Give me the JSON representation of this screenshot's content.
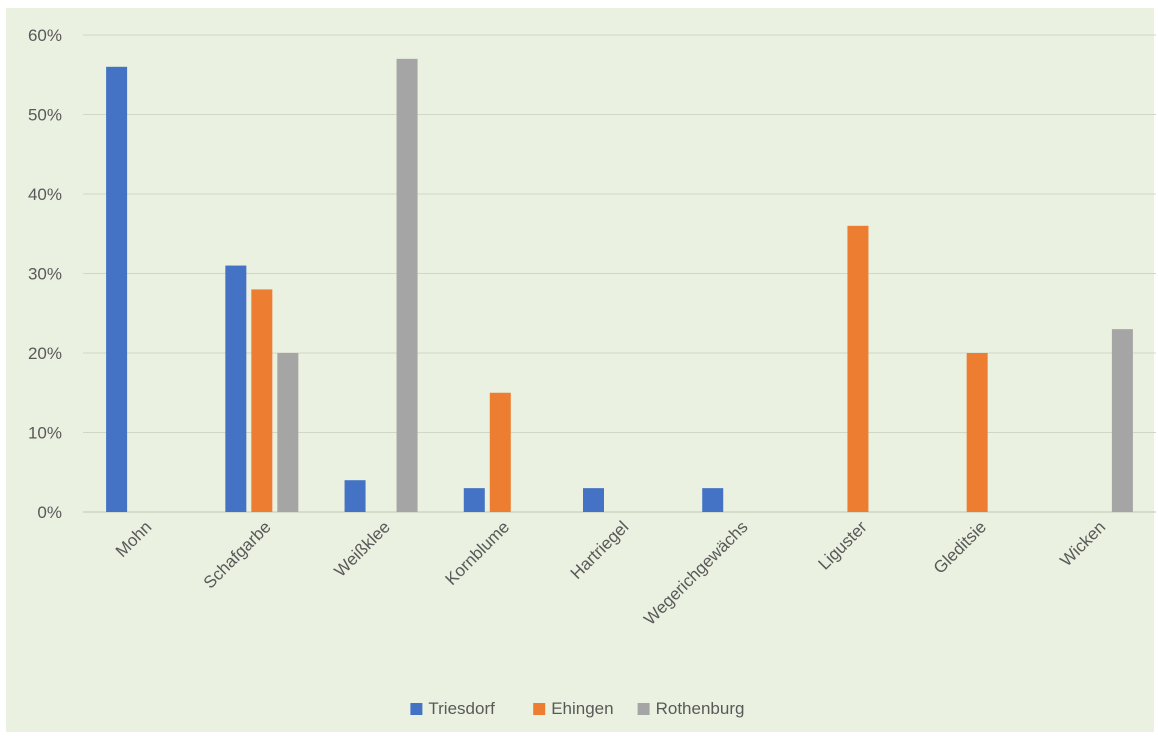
{
  "chart_data": {
    "type": "bar",
    "title": "",
    "xlabel": "",
    "ylabel": "",
    "categories": [
      "Mohn",
      "Schafgarbe",
      "Weißklee",
      "Kornblume",
      "Hartriegel",
      "Wegerichgewächs",
      "Liguster",
      "Gleditsie",
      "Wicken"
    ],
    "series": [
      {
        "name": "Triesdorf",
        "color": "#4472c4",
        "values": [
          56,
          31,
          4,
          3,
          3,
          3,
          0,
          0,
          0
        ]
      },
      {
        "name": "Ehingen",
        "color": "#ed7d31",
        "values": [
          0,
          28,
          0,
          15,
          0,
          0,
          36,
          20,
          0
        ]
      },
      {
        "name": "Rothenburg",
        "color": "#a5a5a5",
        "values": [
          0,
          20,
          57,
          0,
          0,
          0,
          0,
          0,
          23
        ]
      }
    ],
    "ylim": [
      0,
      60
    ],
    "yticks": [
      0,
      10,
      20,
      30,
      40,
      50,
      60
    ],
    "ytick_labels": [
      "0%",
      "10%",
      "20%",
      "30%",
      "40%",
      "50%",
      "60%"
    ],
    "grid": true,
    "legend_position": "bottom",
    "background_color": "#ebf1e1",
    "gridline_color": "#d0d8c5"
  }
}
